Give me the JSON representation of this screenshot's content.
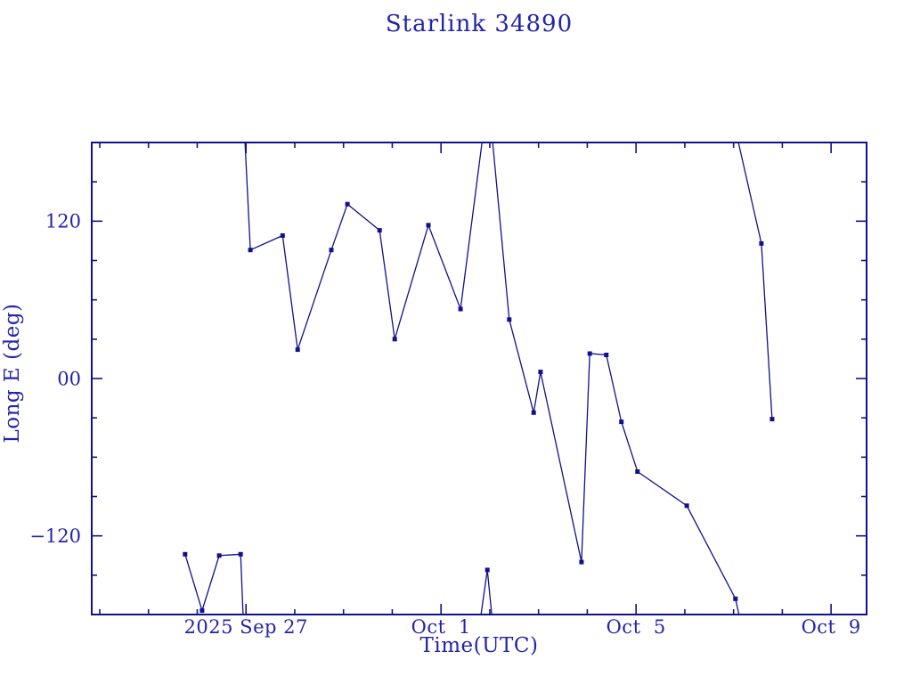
{
  "title": "Starlink 34890",
  "colors": {
    "background": "#ffffff",
    "plot": "#11118b",
    "text": "#2323ab"
  },
  "chart_data": {
    "type": "line",
    "title": "Starlink 34890",
    "xlabel": "Time(UTC)",
    "ylabel": "Long E (deg)",
    "x_unit": "days since 2025 Sep 27 00:00 UTC",
    "xlim": [
      -3.164,
      12.728
    ],
    "ylim": [
      -180,
      180
    ],
    "grid": false,
    "legend": "none",
    "marker": "filled-square",
    "x_minor_step_days": 1,
    "y_minor_step": 30,
    "x_major_ticks": [
      {
        "d": 0,
        "label": "2025 Sep 27"
      },
      {
        "d": 4,
        "label": "Oct  1"
      },
      {
        "d": 8,
        "label": "Oct  5"
      },
      {
        "d": 12,
        "label": "Oct  9"
      }
    ],
    "y_major_ticks": [
      {
        "v": 120,
        "label": "120"
      },
      {
        "v": 0,
        "label": "00"
      },
      {
        "v": -120,
        "label": "−120"
      }
    ],
    "segments": [
      {
        "name": "segment-1",
        "points": [
          {
            "d": -1.25,
            "v": -134,
            "m": true
          },
          {
            "d": -0.9,
            "v": -177,
            "m": true
          },
          {
            "d": -0.55,
            "v": -135,
            "m": true
          },
          {
            "d": -0.11,
            "v": -134,
            "m": true
          },
          {
            "d": -0.06,
            "v": -180,
            "m": false
          }
        ]
      },
      {
        "name": "segment-2",
        "points": [
          {
            "d": -0.02,
            "v": 180,
            "m": false
          },
          {
            "d": 0.09,
            "v": 98,
            "m": true
          },
          {
            "d": 0.75,
            "v": 109,
            "m": true
          },
          {
            "d": 1.06,
            "v": 22,
            "m": true
          },
          {
            "d": 1.75,
            "v": 98,
            "m": true
          },
          {
            "d": 2.08,
            "v": 133,
            "m": true
          },
          {
            "d": 2.74,
            "v": 113,
            "m": true
          },
          {
            "d": 3.05,
            "v": 30,
            "m": true
          },
          {
            "d": 3.74,
            "v": 117,
            "m": true
          },
          {
            "d": 4.4,
            "v": 53,
            "m": true
          },
          {
            "d": 4.84,
            "v": 180,
            "m": false
          }
        ]
      },
      {
        "name": "segment-3",
        "points": [
          {
            "d": 4.82,
            "v": -180,
            "m": false
          },
          {
            "d": 4.95,
            "v": -146,
            "m": true
          },
          {
            "d": 5.04,
            "v": -180,
            "m": false
          }
        ]
      },
      {
        "name": "segment-4",
        "points": [
          {
            "d": 5.06,
            "v": 180,
            "m": false
          },
          {
            "d": 5.4,
            "v": 45,
            "m": true
          },
          {
            "d": 5.9,
            "v": -26,
            "m": true
          },
          {
            "d": 6.04,
            "v": 5,
            "m": true
          },
          {
            "d": 6.88,
            "v": -140,
            "m": true
          },
          {
            "d": 7.05,
            "v": 19,
            "m": true
          },
          {
            "d": 7.39,
            "v": 18,
            "m": true
          },
          {
            "d": 7.7,
            "v": -33,
            "m": true
          },
          {
            "d": 8.03,
            "v": -71,
            "m": true
          },
          {
            "d": 9.04,
            "v": -97,
            "m": true
          },
          {
            "d": 10.04,
            "v": -168,
            "m": true
          },
          {
            "d": 10.11,
            "v": -180,
            "m": false
          }
        ]
      },
      {
        "name": "segment-5",
        "points": [
          {
            "d": 10.1,
            "v": 180,
            "m": false
          },
          {
            "d": 10.57,
            "v": 103,
            "m": true
          },
          {
            "d": 10.79,
            "v": -31,
            "m": true
          }
        ]
      }
    ]
  }
}
